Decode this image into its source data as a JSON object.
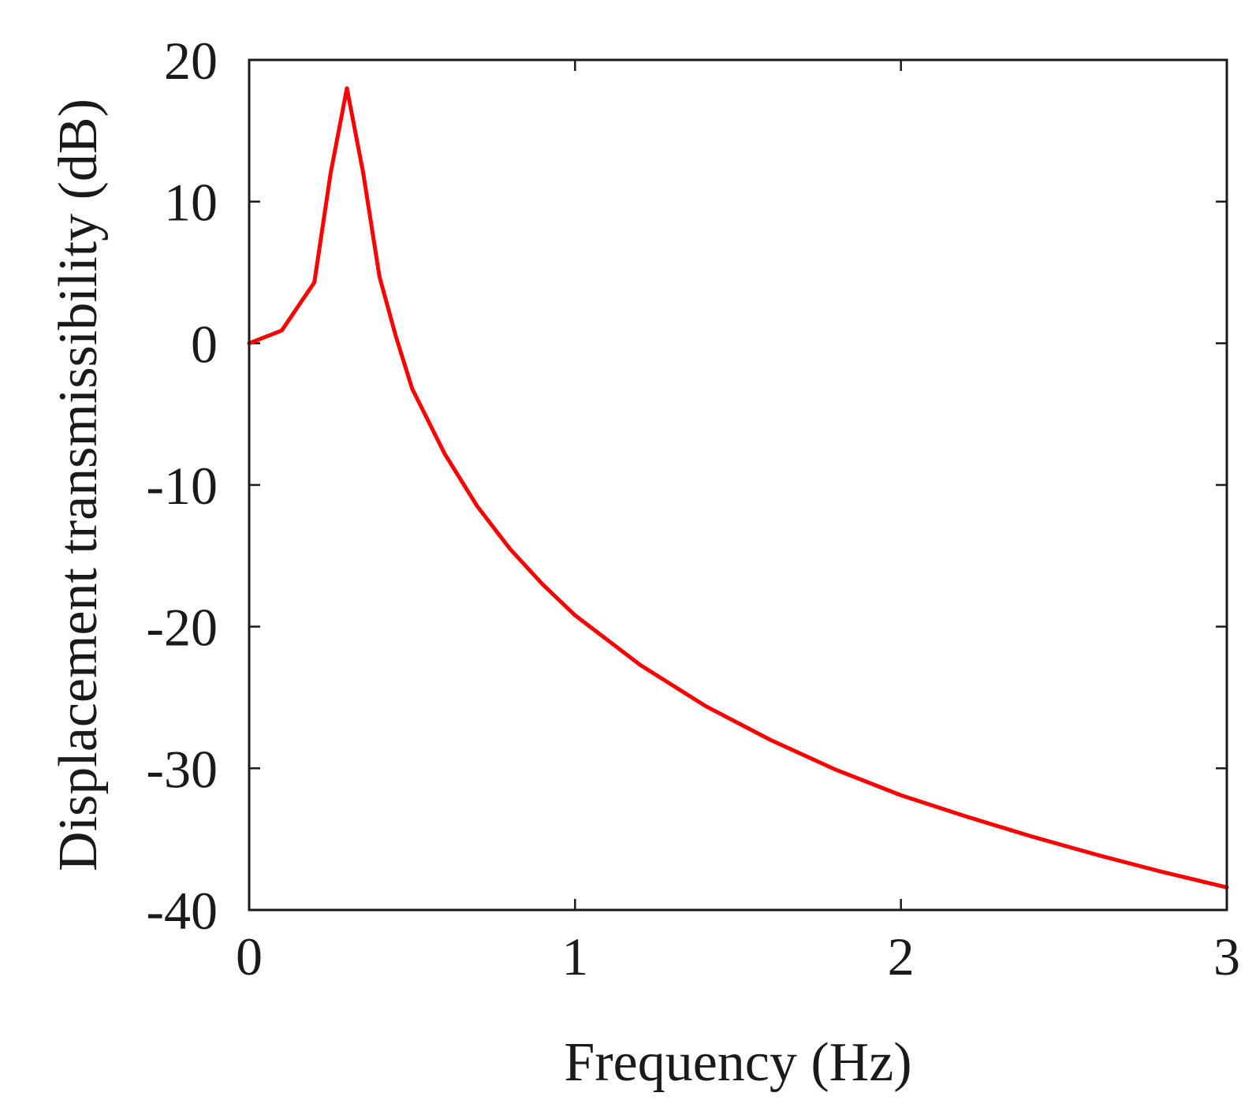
{
  "chart_data": {
    "type": "line",
    "title": "",
    "xlabel": "Frequency (Hz)",
    "ylabel": "Displacement transmissibility (dB)",
    "xlim": [
      0,
      3
    ],
    "ylim": [
      -40,
      20
    ],
    "x_ticks": [
      "0",
      "1",
      "2",
      "3"
    ],
    "y_ticks": [
      "20",
      "10",
      "0",
      "-10",
      "-20",
      "-30",
      "-40"
    ],
    "grid": false,
    "legend": "none",
    "series": [
      {
        "color": "#ff0000",
        "points": [
          [
            0.0,
            0.0
          ],
          [
            0.1,
            0.9
          ],
          [
            0.2,
            4.3
          ],
          [
            0.25,
            12.0
          ],
          [
            0.3,
            18.0
          ],
          [
            0.35,
            12.0
          ],
          [
            0.4,
            4.7
          ],
          [
            0.45,
            0.5
          ],
          [
            0.5,
            -3.2
          ],
          [
            0.6,
            -7.8
          ],
          [
            0.7,
            -11.5
          ],
          [
            0.8,
            -14.5
          ],
          [
            0.9,
            -17.0
          ],
          [
            1.0,
            -19.2
          ],
          [
            1.2,
            -22.7
          ],
          [
            1.4,
            -25.6
          ],
          [
            1.6,
            -28.0
          ],
          [
            1.8,
            -30.1
          ],
          [
            2.0,
            -31.9
          ],
          [
            2.2,
            -33.4
          ],
          [
            2.4,
            -34.8
          ],
          [
            2.6,
            -36.1
          ],
          [
            2.8,
            -37.3
          ],
          [
            3.0,
            -38.4
          ]
        ]
      }
    ]
  }
}
